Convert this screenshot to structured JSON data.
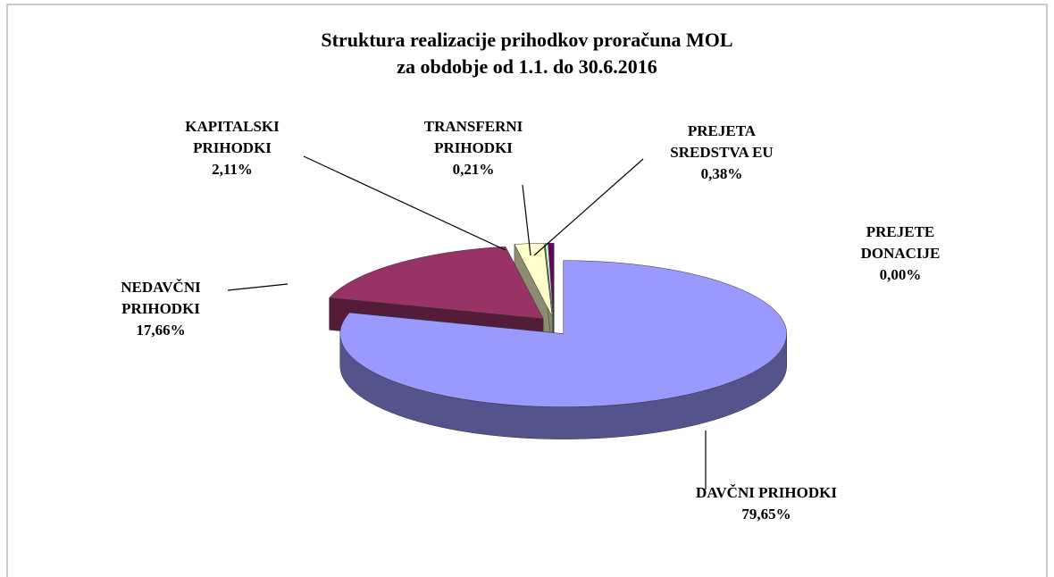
{
  "chart_data": {
    "type": "pie3d",
    "title": "Struktura realizacije prihodkov proračuna MOL",
    "subtitle": "za obdobje od 1.1. do 30.6.2016",
    "categories": [
      "DAVČNI PRIHODKI",
      "NEDAVČNI PRIHODKI",
      "KAPITALSKI PRIHODKI",
      "TRANSFERNI PRIHODKI",
      "PREJETA SREDSTVA EU",
      "PREJETE DONACIJE"
    ],
    "values": [
      79.65,
      17.66,
      2.11,
      0.21,
      0.38,
      0.0
    ],
    "value_labels": [
      "79,65%",
      "17,66%",
      "2,11%",
      "0,21%",
      "0,38%",
      "0,00%"
    ],
    "colors": [
      "#9999ff",
      "#993366",
      "#ffffcc",
      "#ccffcc",
      "#660066",
      "#ff8080"
    ]
  }
}
